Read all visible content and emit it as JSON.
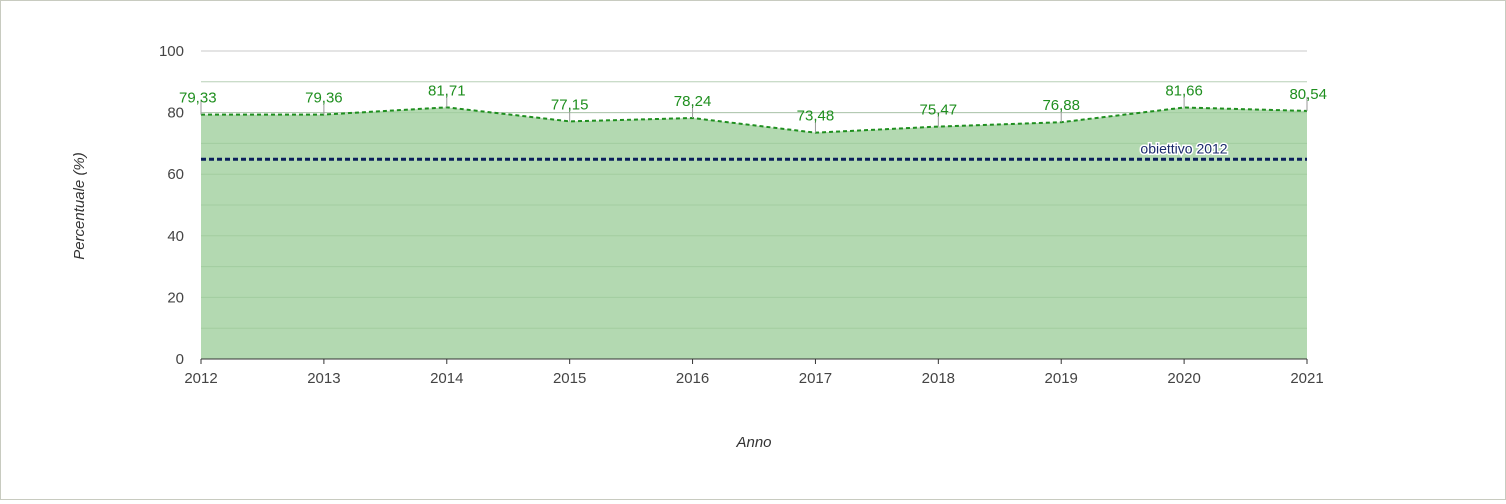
{
  "chart_data": {
    "type": "area",
    "x": [
      "2012",
      "2013",
      "2014",
      "2015",
      "2016",
      "2017",
      "2018",
      "2019",
      "2020",
      "2021"
    ],
    "series": [
      {
        "values": [
          79.33,
          79.36,
          81.71,
          77.15,
          78.24,
          73.48,
          75.47,
          76.88,
          81.66,
          80.54
        ],
        "labels": [
          "79,33",
          "79,36",
          "81,71",
          "77,15",
          "78,24",
          "73,48",
          "75,47",
          "76,88",
          "81,66",
          "80,54"
        ],
        "color": "#1f8f1f",
        "fill": "#b3d9b1"
      }
    ],
    "target": {
      "name": "obiettivo 2012",
      "value": 65,
      "color": "#0b1f5c"
    },
    "xlabel": "Anno",
    "ylabel": "Percentuale (%)",
    "ylim": [
      0,
      100
    ],
    "yticks": [
      0,
      20,
      40,
      60,
      80,
      100
    ],
    "grid": true
  }
}
